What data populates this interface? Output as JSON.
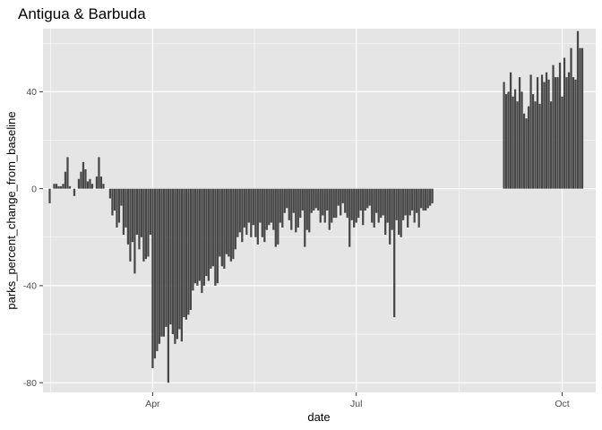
{
  "chart_data": {
    "type": "bar",
    "title": "Antigua & Barbuda",
    "xlabel": "date",
    "ylabel": "parks_percent_change_from_baseline",
    "xlim": [
      "2020-02-12",
      "2020-10-16"
    ],
    "ylim": [
      -84,
      66
    ],
    "x_ticks": [
      {
        "date": "2020-04-01",
        "label": "Apr"
      },
      {
        "date": "2020-07-01",
        "label": "Jul"
      },
      {
        "date": "2020-10-01",
        "label": "Oct"
      }
    ],
    "y_ticks": [
      -80,
      -40,
      0,
      40
    ],
    "grid": true,
    "bar_color": "#474747",
    "panel_color": "#e5e5e5",
    "grid_color": "#ffffff",
    "series": [
      {
        "start_date": "2020-02-15",
        "values": [
          -6,
          0,
          2,
          2,
          1,
          1,
          2,
          7,
          13,
          1,
          0,
          -3,
          0,
          4,
          7,
          11,
          8,
          3,
          4,
          2,
          0,
          5,
          13,
          5,
          2,
          0,
          0,
          -4,
          -11,
          -9,
          -16,
          -14,
          -7,
          -19,
          -16,
          -23,
          -30,
          -22,
          -35,
          -19,
          -25,
          -20,
          -30,
          -29,
          -28,
          -19,
          -74,
          -70,
          -67,
          -64,
          -61,
          -61,
          -57,
          -80,
          -56,
          -60,
          -64,
          -62,
          -58,
          -63,
          -53,
          -54,
          -52,
          -50,
          -42,
          -39,
          -40,
          -38,
          -43,
          -40,
          -36,
          -38,
          -33,
          -32,
          -40,
          -39,
          -28,
          -32,
          -33,
          -27,
          -28,
          -30,
          -29,
          -25,
          -20,
          -18,
          -22,
          -16,
          -19,
          -14,
          -20,
          -15,
          -20,
          -23,
          -14,
          -20,
          -22,
          -17,
          -15,
          -14,
          -17,
          -24,
          -23,
          -14,
          -16,
          -10,
          -8,
          -13,
          -17,
          -10,
          -18,
          -16,
          -12,
          -9,
          -24,
          -17,
          -18,
          -10,
          -9,
          -8,
          -9,
          -14,
          -11,
          -14,
          -9,
          -17,
          -14,
          -12,
          -12,
          -7,
          -11,
          -6,
          -10,
          -12,
          -24,
          -13,
          -16,
          -14,
          -12,
          -9,
          -15,
          -9,
          -8,
          -7,
          -14,
          -16,
          -10,
          -14,
          -12,
          -11,
          -19,
          -14,
          -23,
          -17,
          -53,
          -13,
          -19,
          -20,
          -13,
          -11,
          -16,
          -11,
          -9,
          -14,
          -10,
          -16,
          -8,
          -9,
          -9,
          -8,
          -7,
          -6
        ],
        "gap_comment": "",
        "second_start_date": "2020-09-05",
        "second_values": [
          44,
          39,
          40,
          48,
          38,
          41,
          36,
          46,
          40,
          31,
          29,
          34,
          47,
          39,
          36,
          46,
          35,
          47,
          44,
          48,
          45,
          36,
          51,
          46,
          46,
          52,
          38,
          54,
          46,
          48,
          58,
          46,
          45,
          65,
          58,
          58
        ]
      }
    ]
  }
}
